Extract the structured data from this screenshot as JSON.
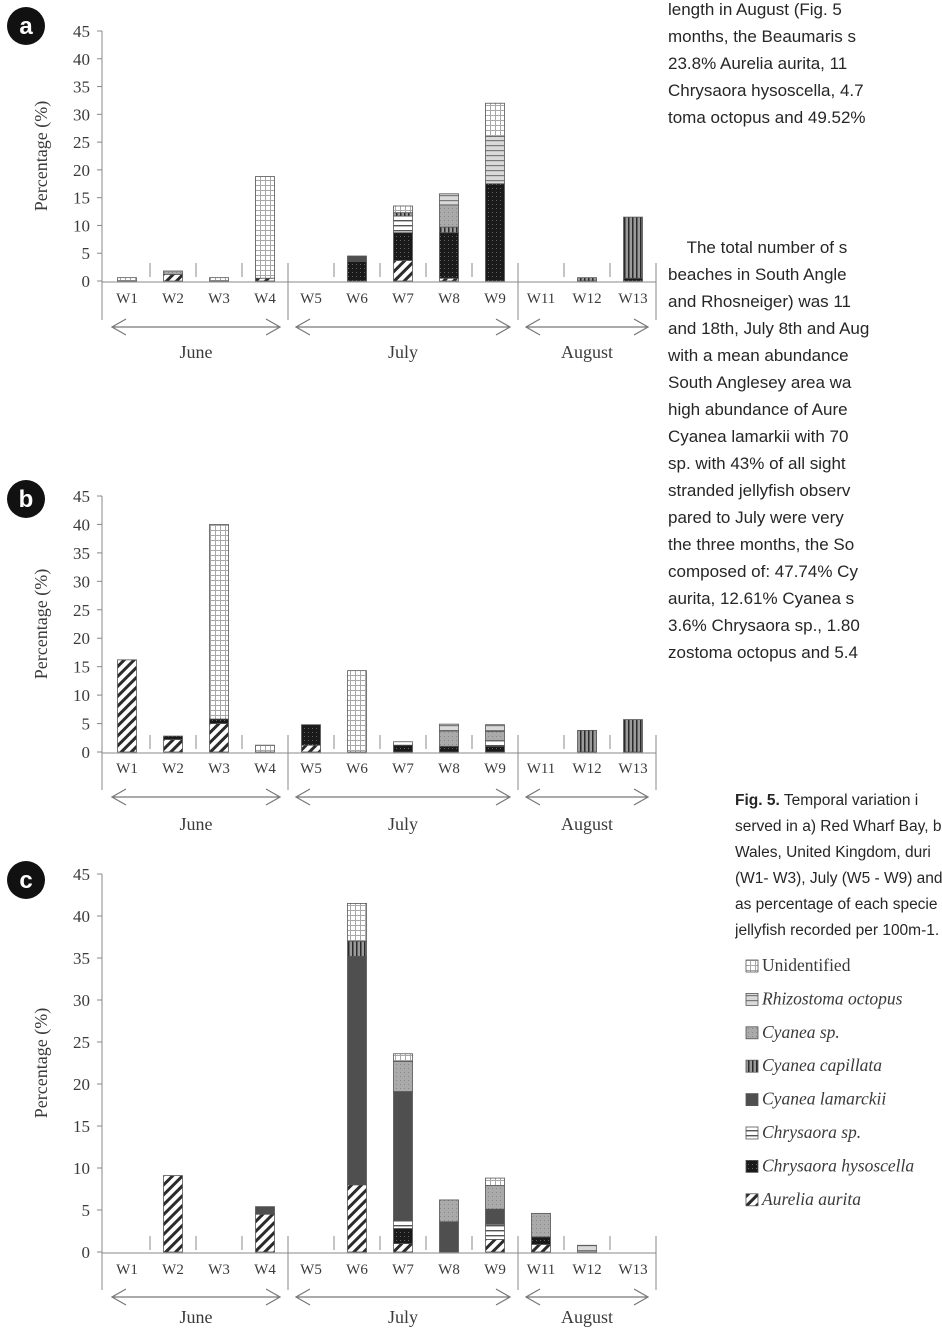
{
  "chart_data": [
    {
      "type": "bar",
      "panel": "a",
      "ylabel": "Percentage (%)",
      "ylim": [
        0,
        45
      ],
      "yticks": [
        0,
        5,
        10,
        15,
        20,
        25,
        30,
        35,
        40,
        45
      ],
      "categories": [
        "W1",
        "W2",
        "W3",
        "W4",
        "W5",
        "W6",
        "W7",
        "W8",
        "W9",
        "W11",
        "W12",
        "W13"
      ],
      "groups": [
        {
          "label": "June",
          "from": "W1",
          "to": "W4"
        },
        {
          "label": "July",
          "from": "W5",
          "to": "W9"
        },
        {
          "label": "August",
          "from": "W11",
          "to": "W13"
        }
      ],
      "series": [
        {
          "name": "Aurelia aurita",
          "values": [
            0,
            1.2,
            0,
            0.5,
            0,
            0,
            3.7,
            0.5,
            0,
            0,
            0,
            0
          ]
        },
        {
          "name": "Chrysaora hysoscella",
          "values": [
            0,
            0,
            0,
            0,
            0,
            3.5,
            5.0,
            8.2,
            17.5,
            0,
            0,
            0.5
          ]
        },
        {
          "name": "Chrysaora sp.",
          "values": [
            0,
            0,
            0,
            0,
            0,
            0,
            3.0,
            0,
            0,
            0,
            0,
            0
          ]
        },
        {
          "name": "Cyanea lamarckii",
          "values": [
            0,
            0,
            0,
            0,
            0,
            1.0,
            0,
            0,
            0,
            0,
            0,
            0
          ]
        },
        {
          "name": "Cyanea capillata",
          "values": [
            0,
            0,
            0,
            0,
            0,
            0,
            0.6,
            1.0,
            0,
            0,
            0.6,
            11.0
          ]
        },
        {
          "name": "Cyanea sp.",
          "values": [
            0,
            0.6,
            0,
            0,
            0,
            0,
            0,
            4.0,
            0,
            0,
            0,
            0
          ]
        },
        {
          "name": "Rhizostoma octopus",
          "values": [
            0,
            0,
            0,
            0,
            0,
            0,
            0,
            2.0,
            8.5,
            0,
            0,
            0
          ]
        },
        {
          "name": "Unidentified",
          "values": [
            0.6,
            0,
            0.6,
            18.3,
            0,
            0,
            1.2,
            0,
            6.0,
            0,
            0,
            0
          ]
        }
      ]
    },
    {
      "type": "bar",
      "panel": "b",
      "ylabel": "Percentage (%)",
      "ylim": [
        0,
        45
      ],
      "yticks": [
        0,
        5,
        10,
        15,
        20,
        25,
        30,
        35,
        40,
        45
      ],
      "categories": [
        "W1",
        "W2",
        "W3",
        "W4",
        "W5",
        "W6",
        "W7",
        "W8",
        "W9",
        "W11",
        "W12",
        "W13"
      ],
      "groups": [
        {
          "label": "June",
          "from": "W1",
          "to": "W4"
        },
        {
          "label": "July",
          "from": "W5",
          "to": "W9"
        },
        {
          "label": "August",
          "from": "W11",
          "to": "W13"
        }
      ],
      "series": [
        {
          "name": "Aurelia aurita",
          "values": [
            16.2,
            2.2,
            5.0,
            0,
            1.2,
            0,
            0,
            0,
            0,
            0,
            0,
            0
          ]
        },
        {
          "name": "Chrysaora hysoscella",
          "values": [
            0,
            0.6,
            0.8,
            0,
            3.6,
            0,
            1.2,
            1.0,
            1.0,
            0,
            0,
            0
          ]
        },
        {
          "name": "Chrysaora sp.",
          "values": [
            0,
            0,
            0,
            0,
            0,
            0,
            0.6,
            0,
            1.0,
            0,
            0,
            0
          ]
        },
        {
          "name": "Cyanea lamarckii",
          "values": [
            0,
            0,
            0,
            0,
            0,
            0,
            0,
            0,
            0,
            0,
            0,
            0
          ]
        },
        {
          "name": "Cyanea capillata",
          "values": [
            0,
            0,
            0,
            0,
            0,
            0,
            0,
            0,
            0,
            0,
            3.8,
            5.7
          ]
        },
        {
          "name": "Cyanea sp.",
          "values": [
            0,
            0,
            0,
            0,
            0,
            0,
            0,
            2.7,
            1.6,
            0,
            0,
            0
          ]
        },
        {
          "name": "Rhizostoma octopus",
          "values": [
            0,
            0,
            0,
            0,
            0,
            0,
            0,
            1.2,
            1.2,
            0,
            0,
            0
          ]
        },
        {
          "name": "Unidentified",
          "values": [
            0,
            0,
            34.2,
            1.2,
            0,
            14.3,
            0,
            0,
            0,
            0,
            0,
            0
          ]
        }
      ]
    },
    {
      "type": "bar",
      "panel": "c",
      "ylabel": "Percentage (%)",
      "ylim": [
        0,
        45
      ],
      "yticks": [
        0,
        5,
        10,
        15,
        20,
        25,
        30,
        35,
        40,
        45
      ],
      "categories": [
        "W1",
        "W2",
        "W3",
        "W4",
        "W5",
        "W6",
        "W7",
        "W8",
        "W9",
        "W11",
        "W12",
        "W13"
      ],
      "groups": [
        {
          "label": "June",
          "from": "W1",
          "to": "W4"
        },
        {
          "label": "July",
          "from": "W5",
          "to": "W9"
        },
        {
          "label": "August",
          "from": "W11",
          "to": "W13"
        }
      ],
      "series": [
        {
          "name": "Aurelia aurita",
          "values": [
            0,
            9.1,
            0,
            4.5,
            0,
            8.0,
            1.0,
            0,
            1.5,
            0.9,
            0,
            0
          ]
        },
        {
          "name": "Chrysaora hysoscella",
          "values": [
            0,
            0,
            0,
            0,
            0,
            0,
            1.8,
            0,
            0,
            0.9,
            0,
            0
          ]
        },
        {
          "name": "Chrysaora sp.",
          "values": [
            0,
            0,
            0,
            0,
            0,
            0,
            0.9,
            0,
            1.8,
            0,
            0,
            0
          ]
        },
        {
          "name": "Cyanea lamarckii",
          "values": [
            0,
            0,
            0,
            0.9,
            0,
            27.2,
            15.4,
            3.6,
            1.8,
            0,
            0,
            0
          ]
        },
        {
          "name": "Cyanea capillata",
          "values": [
            0,
            0,
            0,
            0,
            0,
            1.8,
            0,
            0,
            0,
            0,
            0,
            0
          ]
        },
        {
          "name": "Cyanea sp.",
          "values": [
            0,
            0,
            0,
            0,
            0,
            0,
            3.6,
            2.6,
            2.8,
            2.8,
            0,
            0
          ]
        },
        {
          "name": "Rhizostoma octopus",
          "values": [
            0,
            0,
            0,
            0,
            0,
            0,
            0,
            0,
            0,
            0,
            0.8,
            0
          ]
        },
        {
          "name": "Unidentified",
          "values": [
            0,
            0,
            0,
            0,
            0,
            4.5,
            0.9,
            0,
            0.9,
            0,
            0,
            0
          ]
        }
      ]
    }
  ],
  "panel_letters": [
    "a",
    "b",
    "c"
  ],
  "legend": [
    {
      "label": "Unidentified",
      "pattern": "pat-unid",
      "italic": false
    },
    {
      "label": "Rhizostoma octopus",
      "pattern": "pat-rhizo",
      "italic": true
    },
    {
      "label": "Cyanea sp.",
      "pattern": "pat-cyansp",
      "italic": true
    },
    {
      "label": "Cyanea capillata",
      "pattern": "pat-capil",
      "italic": true
    },
    {
      "label": "Cyanea lamarckii",
      "pattern": "pat-lamar",
      "italic": true
    },
    {
      "label": "Chrysaora sp.",
      "pattern": "pat-chrsp",
      "italic": true
    },
    {
      "label": "Chrysaora hysoscella",
      "pattern": "pat-hyso",
      "italic": true
    },
    {
      "label": "Aurelia aurita",
      "pattern": "pat-aurel",
      "italic": true
    }
  ],
  "text_column": {
    "top_lines": [
      "length in August (Fig. 5",
      "months, the Beaumaris s",
      "23.8% Aurelia aurita, 11",
      "Chrysaora hysoscella, 4.7",
      "toma octopus and 49.52%"
    ],
    "para_lines": [
      "    The total number of s",
      "beaches in South Angle",
      "and Rhosneiger) was 11",
      "and 18th, July 8th and Aug",
      "with a mean abundance",
      "South Anglesey area wa",
      "high abundance of Aure",
      "Cyanea lamarkii with 70",
      "sp. with 43% of all sight",
      "stranded jellyfish observ",
      "pared to July were very",
      "the three months, the So",
      "composed of: 47.74% Cy",
      "aurita, 12.61% Cyanea s",
      "3.6% Chrysaora sp., 1.80",
      "zostoma octopus and 5.4"
    ]
  },
  "caption": {
    "fig_label": "Fig. 5.",
    "lines": [
      "Temporal variation i",
      "served in a) Red Wharf Bay, b",
      "Wales, United Kingdom, duri",
      "(W1- W3), July (W5 - W9) and",
      "as percentage of each specie",
      "jellyfish recorded per 100m-1."
    ]
  }
}
